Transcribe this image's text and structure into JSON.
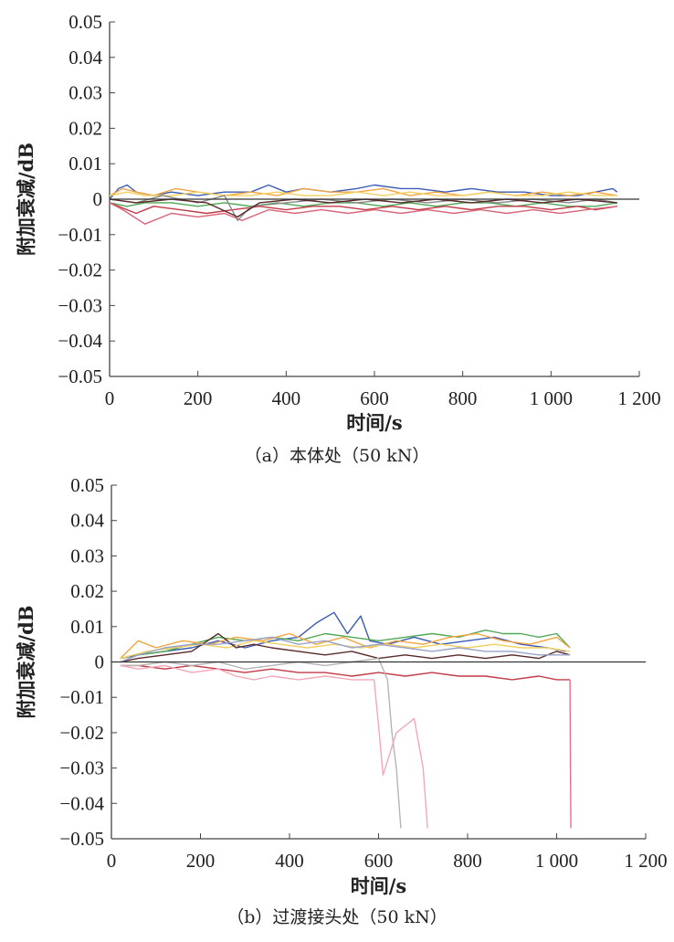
{
  "chart_data": [
    {
      "type": "line",
      "caption": "（a）本体处（50 kN）",
      "xlabel": "时间/s",
      "ylabel": "附加衰减/dB",
      "xlim": [
        0,
        1200
      ],
      "ylim": [
        -0.05,
        0.05
      ],
      "xticks": [
        0,
        200,
        400,
        600,
        800,
        1000,
        1200
      ],
      "xtick_labels": [
        "0",
        "200",
        "400",
        "600",
        "800",
        "1 000",
        "1 200"
      ],
      "yticks": [
        0.05,
        0.04,
        0.03,
        0.02,
        0.01,
        0,
        -0.01,
        -0.02,
        -0.03,
        -0.04,
        -0.05
      ],
      "ytick_labels": [
        "0.05",
        "0.04",
        "0.03",
        "0.02",
        "0.01",
        "0",
        "−0.01",
        "−0.02",
        "−0.03",
        "−0.04",
        "−0.05"
      ],
      "grid": false,
      "series": [
        {
          "color": "#3b5bb5",
          "x": [
            0,
            20,
            40,
            60,
            100,
            140,
            200,
            260,
            320,
            360,
            400,
            440,
            500,
            560,
            600,
            660,
            700,
            760,
            820,
            880,
            940,
            1000,
            1060,
            1100,
            1140,
            1150
          ],
          "y": [
            0,
            0.003,
            0.004,
            0.002,
            0.001,
            0.002,
            0.001,
            0.002,
            0.002,
            0.004,
            0.002,
            0.003,
            0.002,
            0.003,
            0.004,
            0.003,
            0.003,
            0.002,
            0.003,
            0.002,
            0.002,
            0.001,
            0.001,
            0.002,
            0.003,
            0.002
          ]
        },
        {
          "color": "#f2a540",
          "x": [
            0,
            30,
            60,
            100,
            150,
            200,
            260,
            320,
            380,
            440,
            500,
            560,
            620,
            680,
            740,
            800,
            860,
            920,
            980,
            1040,
            1100,
            1150
          ],
          "y": [
            0.001,
            0.003,
            0.002,
            0.001,
            0.003,
            0.002,
            0.001,
            0.002,
            0.001,
            0.003,
            0.002,
            0.002,
            0.003,
            0.001,
            0.002,
            0.001,
            0.002,
            0.001,
            0.002,
            0.001,
            0.002,
            0.001
          ]
        },
        {
          "color": "#f1d060",
          "x": [
            0,
            40,
            80,
            140,
            200,
            260,
            320,
            380,
            440,
            500,
            560,
            620,
            680,
            740,
            800,
            860,
            920,
            980,
            1040,
            1100,
            1150
          ],
          "y": [
            0.001,
            0.002,
            0.001,
            0.001,
            0.002,
            0.001,
            0.001,
            0.002,
            0.001,
            0.001,
            0.002,
            0.001,
            0.002,
            0.001,
            0.001,
            0.002,
            0.001,
            0.001,
            0.002,
            0.001,
            0.001
          ]
        },
        {
          "color": "#4fa855",
          "x": [
            0,
            40,
            80,
            140,
            200,
            260,
            320,
            380,
            440,
            500,
            560,
            620,
            680,
            740,
            800,
            860,
            920,
            980,
            1040,
            1100,
            1150
          ],
          "y": [
            -0.001,
            -0.002,
            -0.001,
            -0.001,
            -0.002,
            -0.001,
            -0.002,
            -0.001,
            -0.002,
            -0.001,
            -0.001,
            -0.002,
            -0.001,
            -0.002,
            -0.001,
            -0.001,
            -0.002,
            -0.001,
            -0.002,
            -0.002,
            -0.001
          ]
        },
        {
          "color": "#c23a47",
          "x": [
            0,
            20,
            60,
            100,
            160,
            220,
            280,
            340,
            400,
            460,
            520,
            580,
            640,
            700,
            760,
            820,
            880,
            940,
            1000,
            1060,
            1100,
            1150
          ],
          "y": [
            -0.001,
            -0.002,
            -0.004,
            -0.002,
            -0.003,
            -0.004,
            -0.003,
            -0.002,
            -0.003,
            -0.002,
            -0.002,
            -0.003,
            -0.002,
            -0.003,
            -0.002,
            -0.003,
            -0.002,
            -0.002,
            -0.003,
            -0.002,
            -0.003,
            -0.002
          ]
        },
        {
          "color": "#d9657a",
          "x": [
            0,
            30,
            80,
            140,
            200,
            260,
            300,
            360,
            420,
            480,
            540,
            600,
            660,
            720,
            780,
            840,
            900,
            960,
            1020,
            1080,
            1150
          ],
          "y": [
            -0.001,
            -0.003,
            -0.007,
            -0.004,
            -0.005,
            -0.004,
            -0.006,
            -0.003,
            -0.004,
            -0.003,
            -0.004,
            -0.003,
            -0.004,
            -0.003,
            -0.004,
            -0.003,
            -0.004,
            -0.003,
            -0.004,
            -0.003,
            -0.002
          ]
        },
        {
          "color": "#8a8a8a",
          "x": [
            0,
            60,
            120,
            200,
            260,
            290,
            320,
            400,
            480,
            560,
            640,
            720,
            800,
            880,
            960,
            1040,
            1100,
            1150
          ],
          "y": [
            0,
            -0.001,
            0.001,
            -0.001,
            0.001,
            -0.006,
            -0.002,
            -0.001,
            0,
            -0.001,
            0,
            -0.001,
            0,
            -0.001,
            0,
            -0.001,
            0,
            -0.001
          ]
        },
        {
          "color": "#5a2a2a",
          "x": [
            0,
            60,
            140,
            220,
            290,
            340,
            420,
            500,
            580,
            660,
            740,
            820,
            900,
            980,
            1060,
            1150
          ],
          "y": [
            0,
            -0.001,
            0,
            -0.001,
            -0.005,
            -0.001,
            0,
            -0.001,
            0,
            -0.001,
            0,
            -0.001,
            0,
            -0.001,
            0,
            -0.001
          ]
        }
      ]
    },
    {
      "type": "line",
      "caption": "（b）过渡接头处（50 kN）",
      "xlabel": "时间/s",
      "ylabel": "附加衰减/dB",
      "xlim": [
        0,
        1200
      ],
      "ylim": [
        -0.05,
        0.05
      ],
      "xticks": [
        0,
        200,
        400,
        600,
        800,
        1000,
        1200
      ],
      "xtick_labels": [
        "0",
        "200",
        "400",
        "600",
        "800",
        "1 000",
        "1 200"
      ],
      "yticks": [
        0.05,
        0.04,
        0.03,
        0.02,
        0.01,
        0,
        -0.01,
        -0.02,
        -0.03,
        -0.04,
        -0.05
      ],
      "ytick_labels": [
        "0.05",
        "0.04",
        "0.03",
        "0.02",
        "0.01",
        "0",
        "−0.01",
        "−0.02",
        "−0.03",
        "−0.04",
        "−0.05"
      ],
      "grid": false,
      "series": [
        {
          "color": "#3b5bb5",
          "x": [
            20,
            60,
            120,
            180,
            240,
            300,
            360,
            420,
            460,
            500,
            530,
            560,
            580,
            620,
            680,
            740,
            800,
            860,
            920,
            980,
            1020
          ],
          "y": [
            0.001,
            0.002,
            0.003,
            0.004,
            0.006,
            0.004,
            0.006,
            0.007,
            0.011,
            0.014,
            0.008,
            0.013,
            0.006,
            0.005,
            0.007,
            0.005,
            0.006,
            0.007,
            0.005,
            0.004,
            0.003
          ]
        },
        {
          "color": "#4fa855",
          "x": [
            20,
            60,
            120,
            180,
            240,
            300,
            360,
            420,
            480,
            540,
            600,
            660,
            720,
            780,
            840,
            880,
            920,
            960,
            1000,
            1030
          ],
          "y": [
            0,
            0.002,
            0.003,
            0.005,
            0.007,
            0.006,
            0.007,
            0.006,
            0.008,
            0.007,
            0.006,
            0.007,
            0.008,
            0.007,
            0.009,
            0.008,
            0.008,
            0.007,
            0.008,
            0.004
          ]
        },
        {
          "color": "#f2a540",
          "x": [
            20,
            60,
            100,
            160,
            220,
            280,
            340,
            400,
            460,
            520,
            580,
            640,
            700,
            760,
            820,
            880,
            940,
            1000,
            1030
          ],
          "y": [
            0.001,
            0.006,
            0.004,
            0.006,
            0.005,
            0.007,
            0.006,
            0.008,
            0.005,
            0.007,
            0.004,
            0.006,
            0.005,
            0.007,
            0.008,
            0.006,
            0.005,
            0.007,
            0.004
          ]
        },
        {
          "color": "#f1d060",
          "x": [
            20,
            80,
            140,
            200,
            260,
            320,
            380,
            440,
            500,
            560,
            620,
            680,
            740,
            800,
            860,
            920,
            980,
            1030
          ],
          "y": [
            0.001,
            0.003,
            0.004,
            0.005,
            0.004,
            0.006,
            0.005,
            0.004,
            0.005,
            0.004,
            0.005,
            0.004,
            0.005,
            0.004,
            0.005,
            0.004,
            0.004,
            0.003
          ]
        },
        {
          "color": "#c23a47",
          "x": [
            20,
            60,
            120,
            180,
            240,
            300,
            360,
            420,
            480,
            540,
            600,
            660,
            720,
            780,
            840,
            900,
            960,
            1000,
            1030
          ],
          "y": [
            -0.001,
            -0.001,
            -0.002,
            -0.001,
            -0.002,
            -0.003,
            -0.002,
            -0.003,
            -0.003,
            -0.004,
            -0.003,
            -0.004,
            -0.003,
            -0.004,
            -0.004,
            -0.005,
            -0.004,
            -0.005,
            -0.005
          ]
        },
        {
          "color": "#5a2a2a",
          "x": [
            20,
            60,
            120,
            180,
            240,
            280,
            320,
            360,
            420,
            480,
            540,
            600,
            660,
            720,
            780,
            840,
            900,
            960,
            1000,
            1030
          ],
          "y": [
            0,
            0.001,
            0.002,
            0.003,
            0.008,
            0.004,
            0.005,
            0.004,
            0.003,
            0.002,
            0.003,
            0.001,
            0.002,
            0.001,
            0.002,
            0.001,
            0.002,
            0.001,
            0.003,
            0.002
          ]
        },
        {
          "color": "#9aa4c8",
          "x": [
            20,
            60,
            120,
            180,
            240,
            300,
            360,
            420,
            480,
            540,
            600,
            660,
            720,
            780,
            840,
            900,
            960,
            1030
          ],
          "y": [
            0,
            0.002,
            0.004,
            0.005,
            0.005,
            0.006,
            0.007,
            0.005,
            0.006,
            0.004,
            0.005,
            0.004,
            0.003,
            0.004,
            0.003,
            0.003,
            0.002,
            0.002
          ]
        },
        {
          "color": "#b5b5b5",
          "x": [
            20,
            60,
            120,
            180,
            240,
            300,
            360,
            420,
            480,
            540,
            600,
            620,
            630,
            640,
            650
          ],
          "y": [
            -0.001,
            -0.001,
            0,
            -0.001,
            0,
            -0.002,
            -0.001,
            0,
            -0.001,
            0,
            0.001,
            -0.005,
            -0.02,
            -0.03,
            -0.047
          ]
        },
        {
          "color": "#f2a8b8",
          "x": [
            20,
            60,
            120,
            180,
            240,
            280,
            320,
            360,
            420,
            480,
            540,
            590,
            600,
            610,
            640,
            680,
            700,
            710
          ],
          "y": [
            -0.001,
            -0.002,
            -0.001,
            -0.003,
            -0.002,
            -0.004,
            -0.005,
            -0.004,
            -0.005,
            -0.004,
            -0.005,
            -0.005,
            -0.018,
            -0.032,
            -0.02,
            -0.016,
            -0.03,
            -0.047
          ]
        },
        {
          "color": "#e8708a",
          "x": [
            1030,
            1031,
            1032
          ],
          "y": [
            -0.005,
            -0.03,
            -0.047
          ]
        }
      ]
    }
  ]
}
